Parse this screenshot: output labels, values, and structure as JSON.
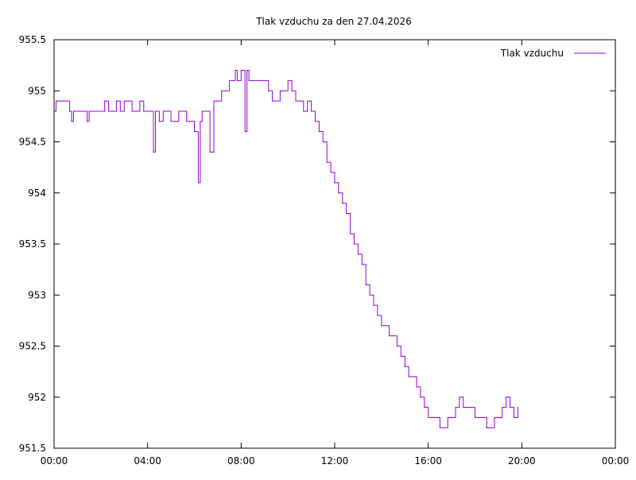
{
  "chart_data": {
    "type": "line",
    "title": "Tlak vzduchu za den 27.04.2026",
    "xlabel": "",
    "ylabel": "",
    "xlim": [
      "00:00",
      "24:00"
    ],
    "ylim": [
      951.5,
      955.5
    ],
    "x_ticks": [
      "00:00",
      "04:00",
      "08:00",
      "12:00",
      "16:00",
      "20:00",
      "00:00"
    ],
    "y_ticks": [
      "951.5",
      "952",
      "952.5",
      "953",
      "953.5",
      "954",
      "954.5",
      "955",
      "955.5"
    ],
    "grid": false,
    "legend_position": "top-right",
    "series": [
      {
        "name": "Tlak vzduchu",
        "color": "#9400d3",
        "x": [
          "00:00",
          "00:05",
          "00:10",
          "00:30",
          "00:40",
          "00:45",
          "00:50",
          "01:00",
          "01:10",
          "01:20",
          "01:25",
          "01:30",
          "01:40",
          "02:00",
          "02:10",
          "02:20",
          "02:30",
          "02:40",
          "02:50",
          "03:00",
          "03:10",
          "03:20",
          "03:30",
          "03:40",
          "03:50",
          "04:00",
          "04:10",
          "04:15",
          "04:20",
          "04:30",
          "04:40",
          "05:00",
          "05:20",
          "05:40",
          "06:00",
          "06:10",
          "06:15",
          "06:20",
          "06:30",
          "06:40",
          "06:50",
          "06:55",
          "07:00",
          "07:10",
          "07:20",
          "07:30",
          "07:40",
          "07:45",
          "07:50",
          "08:00",
          "08:10",
          "08:15",
          "08:20",
          "08:30",
          "08:40",
          "08:50",
          "09:00",
          "09:10",
          "09:20",
          "09:40",
          "09:50",
          "10:00",
          "10:10",
          "10:20",
          "10:30",
          "10:40",
          "10:50",
          "11:00",
          "11:10",
          "11:20",
          "11:30",
          "11:40",
          "11:50",
          "12:00",
          "12:10",
          "12:20",
          "12:30",
          "12:40",
          "12:50",
          "13:00",
          "13:10",
          "13:20",
          "13:30",
          "13:40",
          "13:50",
          "14:00",
          "14:10",
          "14:20",
          "14:30",
          "14:40",
          "14:50",
          "15:00",
          "15:10",
          "15:20",
          "15:30",
          "15:40",
          "15:50",
          "16:00",
          "16:10",
          "16:20",
          "16:30",
          "16:40",
          "16:50",
          "17:00",
          "17:10",
          "17:20",
          "17:30",
          "17:40",
          "17:50",
          "18:00",
          "18:10",
          "18:20",
          "18:30",
          "18:40",
          "18:50",
          "19:00",
          "19:10",
          "19:20",
          "19:30",
          "19:40",
          "19:50"
        ],
        "values": [
          954.8,
          954.9,
          954.9,
          954.9,
          954.8,
          954.7,
          954.8,
          954.8,
          954.8,
          954.8,
          954.7,
          954.8,
          954.8,
          954.8,
          954.9,
          954.8,
          954.8,
          954.9,
          954.8,
          954.9,
          954.9,
          954.8,
          954.8,
          954.9,
          954.8,
          954.8,
          954.8,
          954.4,
          954.8,
          954.7,
          954.8,
          954.7,
          954.8,
          954.7,
          954.6,
          954.1,
          954.7,
          954.8,
          954.8,
          954.4,
          954.9,
          954.9,
          954.9,
          955.0,
          955.0,
          955.1,
          955.1,
          955.2,
          955.1,
          955.2,
          954.6,
          955.2,
          955.1,
          955.1,
          955.1,
          955.1,
          955.1,
          955.0,
          954.9,
          955.0,
          955.0,
          955.1,
          955.0,
          954.9,
          954.9,
          954.8,
          954.9,
          954.8,
          954.7,
          954.6,
          954.5,
          954.3,
          954.2,
          954.1,
          954.0,
          953.9,
          953.8,
          953.6,
          953.5,
          953.4,
          953.3,
          953.1,
          953.0,
          952.9,
          952.8,
          952.7,
          952.7,
          952.6,
          952.6,
          952.5,
          952.4,
          952.3,
          952.2,
          952.2,
          952.1,
          952.0,
          951.9,
          951.8,
          951.8,
          951.8,
          951.7,
          951.7,
          951.8,
          951.8,
          951.9,
          952.0,
          951.9,
          951.9,
          951.9,
          951.8,
          951.8,
          951.8,
          951.7,
          951.7,
          951.8,
          951.8,
          951.9,
          952.0,
          951.9,
          951.8,
          951.9
        ]
      }
    ]
  }
}
